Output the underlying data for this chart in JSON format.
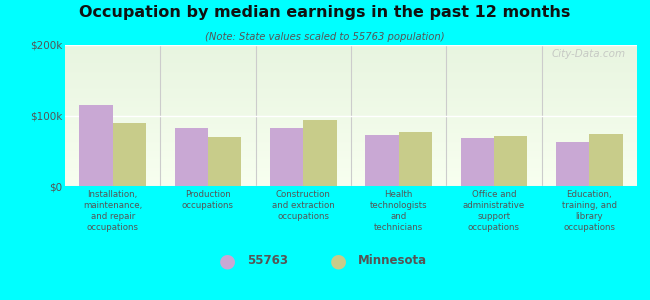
{
  "title": "Occupation by median earnings in the past 12 months",
  "subtitle": "(Note: State values scaled to 55763 population)",
  "categories": [
    "Installation,\nmaintenance,\nand repair\noccupations",
    "Production\noccupations",
    "Construction\nand extraction\noccupations",
    "Health\ntechnologists\nand\ntechnicians",
    "Office and\nadministrative\nsupport\noccupations",
    "Education,\ntraining, and\nlibrary\noccupations"
  ],
  "values_55763": [
    115000,
    82000,
    82000,
    73000,
    68000,
    62000
  ],
  "values_minnesota": [
    90000,
    70000,
    93000,
    76000,
    71000,
    74000
  ],
  "color_55763": "#c9a8d4",
  "color_minnesota": "#c8cc8a",
  "ylim": [
    0,
    200000
  ],
  "yticks": [
    0,
    100000,
    200000
  ],
  "ytick_labels": [
    "$0",
    "$100k",
    "$200k"
  ],
  "background_color": "#00ffff",
  "legend_label_55763": "55763",
  "legend_label_minnesota": "Minnesota",
  "watermark": "City-Data.com",
  "bar_width": 0.35
}
